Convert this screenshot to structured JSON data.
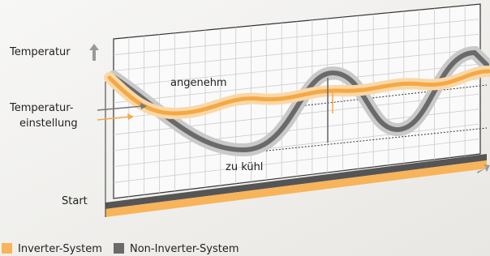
{
  "labels": {
    "temperature": "Temperatur",
    "setting_line1": "Temperatur-",
    "setting_line2": "einstellung",
    "comfortable": "angenehm",
    "too_cool": "zu kühl",
    "start": "Start"
  },
  "legend": [
    {
      "label": "Inverter-System"
    },
    {
      "label": "Non-Inverter-System"
    }
  ]
}
